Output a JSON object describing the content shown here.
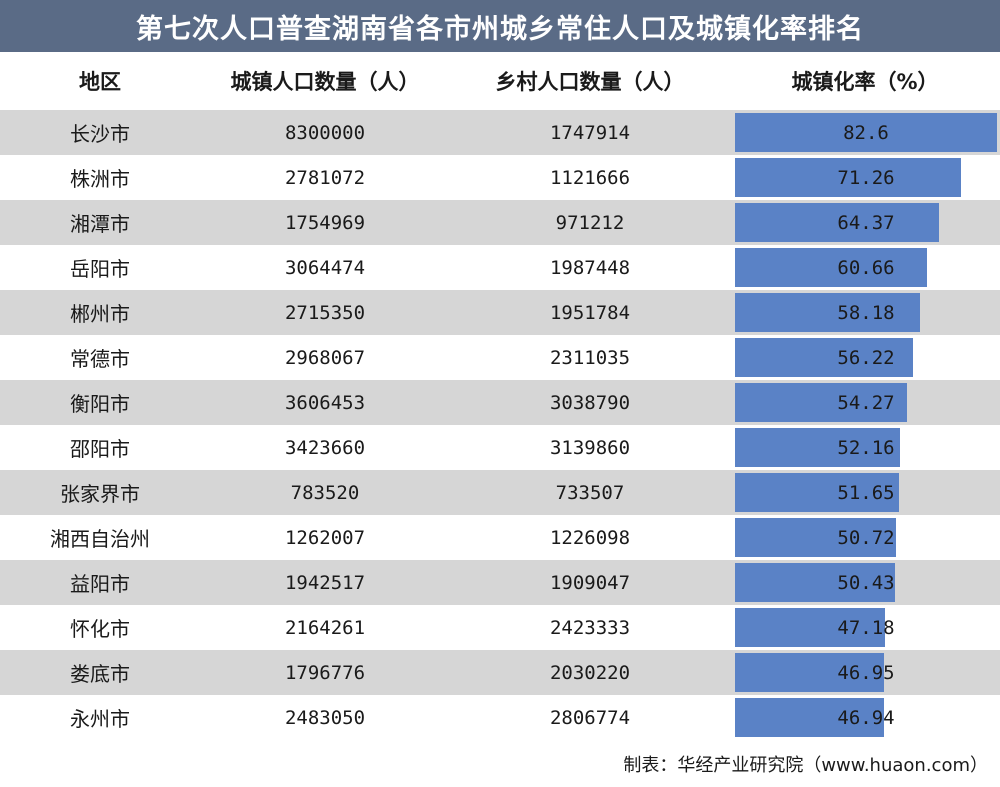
{
  "title": "第七次人口普查湖南省各市州城乡常住人口及城镇化率排名",
  "headers": {
    "region": "地区",
    "urban": "城镇人口数量（人）",
    "rural": "乡村人口数量（人）",
    "rate": "城镇化率（%）"
  },
  "footer": "制表：华经产业研究院（www.huaon.com）",
  "bar_color": "#5a82c6",
  "chart_data": {
    "type": "table",
    "columns": [
      "地区",
      "城镇人口数量（人）",
      "乡村人口数量（人）",
      "城镇化率（%）"
    ],
    "rows": [
      {
        "region": "长沙市",
        "urban": "8300000",
        "rural": "1747914",
        "rate": "82.6"
      },
      {
        "region": "株洲市",
        "urban": "2781072",
        "rural": "1121666",
        "rate": "71.26"
      },
      {
        "region": "湘潭市",
        "urban": "1754969",
        "rural": "971212",
        "rate": "64.37"
      },
      {
        "region": "岳阳市",
        "urban": "3064474",
        "rural": "1987448",
        "rate": "60.66"
      },
      {
        "region": "郴州市",
        "urban": "2715350",
        "rural": "1951784",
        "rate": "58.18"
      },
      {
        "region": "常德市",
        "urban": "2968067",
        "rural": "2311035",
        "rate": "56.22"
      },
      {
        "region": "衡阳市",
        "urban": "3606453",
        "rural": "3038790",
        "rate": "54.27"
      },
      {
        "region": "邵阳市",
        "urban": "3423660",
        "rural": "3139860",
        "rate": "52.16"
      },
      {
        "region": "张家界市",
        "urban": "783520",
        "rural": "733507",
        "rate": "51.65"
      },
      {
        "region": "湘西自治州",
        "urban": "1262007",
        "rural": "1226098",
        "rate": "50.72"
      },
      {
        "region": "益阳市",
        "urban": "1942517",
        "rural": "1909047",
        "rate": "50.43"
      },
      {
        "region": "怀化市",
        "urban": "2164261",
        "rural": "2423333",
        "rate": "47.18"
      },
      {
        "region": "娄底市",
        "urban": "1796776",
        "rural": "2030220",
        "rate": "46.95"
      },
      {
        "region": "永州市",
        "urban": "2483050",
        "rural": "2806774",
        "rate": "46.94"
      }
    ]
  }
}
